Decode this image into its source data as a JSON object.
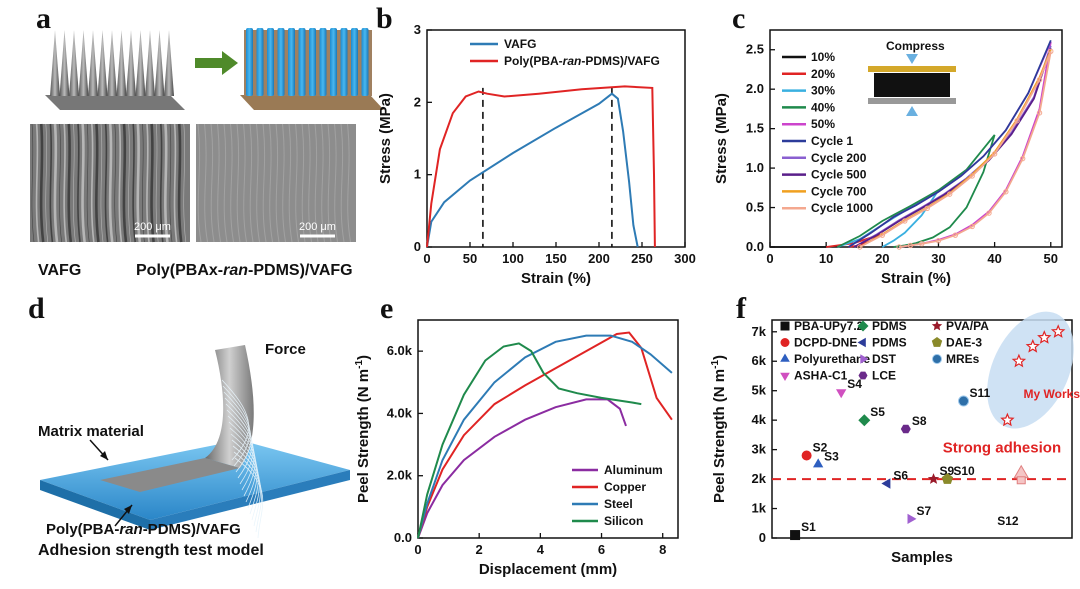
{
  "panels": {
    "a": {
      "label": "a",
      "caption_left": "VAFG",
      "caption_right": "Poly(PBAx-",
      "caption_right_italic": "ran",
      "caption_right_end": "-PDMS)/VAFG",
      "scale_bar_left": "200 μm",
      "scale_bar_right": "200 μm"
    },
    "b": {
      "label": "b"
    },
    "c": {
      "label": "c",
      "compress_label": "Compress"
    },
    "d": {
      "label": "d",
      "force_label": "Force",
      "matrix_label": "Matrix material",
      "composite_label": "Poly(PBA-",
      "composite_italic": "ran",
      "composite_end": "-PDMS)/VAFG",
      "model_caption": "Adhesion strength test model"
    },
    "e": {
      "label": "e"
    },
    "f": {
      "label": "f"
    }
  },
  "colors": {
    "red": "#e02424",
    "blue": "#2e7bb5",
    "green": "#1f8a4c",
    "purple": "#8b2ca1",
    "black": "#111111"
  },
  "chart_data": [
    {
      "id": "b",
      "type": "line",
      "xlabel": "Strain (%)",
      "ylabel": "Stress (MPa)",
      "xlim": [
        0,
        300
      ],
      "ylim": [
        0,
        3
      ],
      "xticks": [
        0,
        50,
        100,
        150,
        200,
        250,
        300
      ],
      "yticks": [
        0,
        1,
        2,
        3
      ],
      "series": [
        {
          "name": "VAFG",
          "color": "#2e7bb5",
          "x": [
            0,
            5,
            20,
            50,
            100,
            150,
            200,
            215,
            222,
            228,
            235,
            240,
            245
          ],
          "y": [
            0,
            0.35,
            0.62,
            0.92,
            1.3,
            1.65,
            1.98,
            2.12,
            2.05,
            1.6,
            0.9,
            0.3,
            0
          ]
        },
        {
          "name": "Poly(PBA-ran-PDMS)/VAFG",
          "name_prefix": "Poly(PBA-",
          "name_italic": "ran",
          "name_suffix": "-PDMS)/VAFG",
          "color": "#e02424",
          "x": [
            0,
            5,
            15,
            30,
            45,
            60,
            70,
            90,
            130,
            180,
            230,
            262,
            264,
            265
          ],
          "y": [
            0,
            0.6,
            1.35,
            1.85,
            2.08,
            2.15,
            2.12,
            2.08,
            2.12,
            2.18,
            2.22,
            2.2,
            1.0,
            0
          ]
        }
      ],
      "vlines": [
        65,
        215
      ],
      "legend": "top-left"
    },
    {
      "id": "c",
      "type": "line",
      "xlabel": "Strain (%)",
      "ylabel": "Stress (MPa)",
      "xlim": [
        0,
        52
      ],
      "ylim": [
        0,
        2.75
      ],
      "xticks": [
        0,
        10,
        20,
        30,
        40,
        50
      ],
      "yticks": [
        0,
        0.5,
        1.0,
        1.5,
        2.0,
        2.5
      ],
      "legend": "top-left",
      "series": [
        {
          "name": "10%",
          "color": "#111111",
          "x": [
            0,
            10
          ],
          "y": [
            0,
            0
          ]
        },
        {
          "name": "20%",
          "color": "#e02424",
          "x": [
            10,
            15,
            18,
            20,
            18,
            16,
            14
          ],
          "y": [
            0,
            0.05,
            0.12,
            0.18,
            0.08,
            0.02,
            0
          ]
        },
        {
          "name": "30%",
          "color": "#3ab0e0",
          "x": [
            12,
            16,
            20,
            25,
            30,
            27,
            24,
            22,
            20
          ],
          "y": [
            0,
            0.1,
            0.28,
            0.5,
            0.72,
            0.4,
            0.18,
            0.08,
            0
          ]
        },
        {
          "name": "40%",
          "color": "#1f8a4c",
          "x": [
            12,
            16,
            20,
            25,
            30,
            35,
            40,
            38,
            35,
            32,
            29,
            26,
            24,
            22
          ],
          "y": [
            0,
            0.14,
            0.33,
            0.52,
            0.72,
            0.98,
            1.42,
            0.95,
            0.5,
            0.25,
            0.12,
            0.05,
            0.02,
            0
          ]
        },
        {
          "name": "50%",
          "color": "#cc44cc",
          "x": [
            14,
            18,
            22,
            26,
            30,
            34,
            38,
            42,
            46,
            50,
            48,
            45,
            42,
            39,
            36,
            33,
            30,
            27,
            25,
            23
          ],
          "y": [
            0,
            0.18,
            0.38,
            0.53,
            0.7,
            0.9,
            1.15,
            1.48,
            1.95,
            2.6,
            1.75,
            1.15,
            0.72,
            0.45,
            0.28,
            0.16,
            0.09,
            0.04,
            0.02,
            0
          ]
        },
        {
          "name": "Cycle 1",
          "color": "#2c3c9a",
          "x": [
            14,
            18,
            22,
            26,
            30,
            34,
            38,
            42,
            46,
            50
          ],
          "y": [
            0,
            0.18,
            0.38,
            0.53,
            0.7,
            0.9,
            1.15,
            1.48,
            1.95,
            2.62
          ]
        },
        {
          "name": "Cycle 200",
          "color": "#8a5fd0",
          "x": [
            15,
            19,
            23,
            27,
            31,
            35,
            39,
            43,
            47,
            50
          ],
          "y": [
            0,
            0.16,
            0.34,
            0.5,
            0.67,
            0.87,
            1.12,
            1.45,
            1.9,
            2.55
          ]
        },
        {
          "name": "Cycle 500",
          "color": "#5a1f8a",
          "x": [
            15,
            19,
            23,
            27,
            31,
            35,
            39,
            43,
            47,
            50
          ],
          "y": [
            0,
            0.15,
            0.33,
            0.49,
            0.66,
            0.86,
            1.1,
            1.43,
            1.88,
            2.52
          ]
        },
        {
          "name": "Cycle 700",
          "color": "#f0a020",
          "x": [
            16,
            20,
            24,
            28,
            32,
            36,
            40,
            44,
            48,
            50
          ],
          "y": [
            0,
            0.16,
            0.34,
            0.5,
            0.68,
            0.92,
            1.2,
            1.62,
            2.15,
            2.5
          ]
        },
        {
          "name": "Cycle 1000",
          "color": "#f4a88f",
          "x": [
            16,
            20,
            24,
            28,
            32,
            36,
            40,
            44,
            48,
            50,
            48,
            45,
            42,
            39,
            36,
            33,
            30,
            27,
            25,
            23
          ],
          "y": [
            0,
            0.15,
            0.33,
            0.49,
            0.67,
            0.9,
            1.18,
            1.6,
            2.12,
            2.48,
            1.7,
            1.12,
            0.7,
            0.43,
            0.26,
            0.15,
            0.08,
            0.04,
            0.02,
            0
          ],
          "markers": true
        }
      ]
    },
    {
      "id": "e",
      "type": "line",
      "xlabel": "Displacement (mm)",
      "ylabel": "Peel Strength (N m",
      "ylabel_sup": "-1",
      "ylabel_end": ")",
      "xlim": [
        0,
        8.5
      ],
      "ylim": [
        0,
        7000
      ],
      "xticks": [
        0,
        2,
        4,
        6,
        8
      ],
      "yticks": [
        0,
        2000,
        4000,
        6000
      ],
      "ytick_labels": [
        "0.0",
        "2.0k",
        "4.0k",
        "6.0k"
      ],
      "legend": "bottom-right",
      "series": [
        {
          "name": "Aluminum",
          "color": "#8b2ca1",
          "x": [
            0,
            0.3,
            0.8,
            1.5,
            2.5,
            3.5,
            4.5,
            5.5,
            6.2,
            6.6,
            6.8
          ],
          "y": [
            0,
            800,
            1700,
            2500,
            3250,
            3800,
            4200,
            4450,
            4450,
            4150,
            3600
          ]
        },
        {
          "name": "Copper",
          "color": "#e02424",
          "x": [
            0,
            0.3,
            0.8,
            1.5,
            2.5,
            3.5,
            4.5,
            5.5,
            6.5,
            6.9,
            7.3,
            7.8,
            8.3
          ],
          "y": [
            0,
            1000,
            2200,
            3300,
            4300,
            4900,
            5450,
            6000,
            6550,
            6600,
            6100,
            4500,
            3800
          ]
        },
        {
          "name": "Steel",
          "color": "#2e7bb5",
          "x": [
            0,
            0.3,
            0.8,
            1.5,
            2.5,
            3.5,
            4.5,
            5.5,
            6.3,
            7.0,
            7.6,
            8.3
          ],
          "y": [
            0,
            1100,
            2500,
            3800,
            5000,
            5800,
            6300,
            6500,
            6500,
            6300,
            5900,
            5300
          ]
        },
        {
          "name": "Silicon",
          "color": "#1f8a4c",
          "x": [
            0,
            0.3,
            0.8,
            1.5,
            2.2,
            2.8,
            3.3,
            3.7,
            4.1,
            4.6,
            5.2,
            6.0,
            7.0,
            7.3
          ],
          "y": [
            0,
            1400,
            3000,
            4600,
            5700,
            6150,
            6250,
            6000,
            5300,
            4800,
            4650,
            4500,
            4350,
            4300
          ]
        }
      ]
    },
    {
      "id": "f",
      "type": "scatter",
      "xlabel": "Samples",
      "ylabel": "Peel Strength (N m",
      "ylabel_sup": "-1",
      "ylabel_end": ")",
      "xlim": [
        0,
        13
      ],
      "ylim": [
        0,
        7400
      ],
      "yticks": [
        0,
        1000,
        2000,
        3000,
        4000,
        5000,
        6000,
        7000
      ],
      "ytick_labels": [
        "0",
        "1k",
        "2k",
        "3k",
        "4k",
        "5k",
        "6k",
        "7k"
      ],
      "hline": 2000,
      "legend": "top",
      "annotation_strong": "Strong adhesion",
      "annotation_mine": "My Works",
      "legend_entries": [
        {
          "name": "PBA-UPy7.2",
          "marker": "square",
          "color": "#111111"
        },
        {
          "name": "PDMS",
          "marker": "diamond",
          "color": "#1f8a4c"
        },
        {
          "name": "PVA/PA",
          "marker": "star",
          "color": "#9a1a2a"
        },
        {
          "name": "DCPD-DNE",
          "marker": "circle",
          "color": "#e02424"
        },
        {
          "name": "PDMS",
          "marker": "tri-left",
          "color": "#2c3c9a"
        },
        {
          "name": "DAE-3",
          "marker": "pentagon",
          "color": "#8a8a2a"
        },
        {
          "name": "Polyurethane",
          "marker": "tri-up",
          "color": "#2e5fc0"
        },
        {
          "name": "DST",
          "marker": "tri-right",
          "color": "#a060d0"
        },
        {
          "name": "MREs",
          "marker": "sphere",
          "color": "#2e6fa8"
        },
        {
          "name": "ASHA-C1",
          "marker": "tri-down",
          "color": "#d050c0"
        },
        {
          "name": "LCE",
          "marker": "hexagon",
          "color": "#6a2a8a"
        }
      ],
      "points": [
        {
          "label": "S1",
          "x": 1.0,
          "y": 100,
          "marker": "square",
          "color": "#111111"
        },
        {
          "label": "S2",
          "x": 1.5,
          "y": 2800,
          "marker": "circle",
          "color": "#e02424"
        },
        {
          "label": "S3",
          "x": 2.0,
          "y": 2500,
          "marker": "tri-up",
          "color": "#2e5fc0"
        },
        {
          "label": "S4",
          "x": 3.0,
          "y": 4950,
          "marker": "tri-down",
          "color": "#d050c0"
        },
        {
          "label": "S5",
          "x": 4.0,
          "y": 4000,
          "marker": "diamond",
          "color": "#1f8a4c"
        },
        {
          "label": "S6",
          "x": 5.0,
          "y": 1850,
          "marker": "tri-left",
          "color": "#2c3c9a"
        },
        {
          "label": "S7",
          "x": 6.0,
          "y": 650,
          "marker": "tri-right",
          "color": "#a060d0"
        },
        {
          "label": "S8",
          "x": 5.8,
          "y": 3700,
          "marker": "hexagon",
          "color": "#6a2a8a"
        },
        {
          "label": "S9",
          "x": 7.0,
          "y": 2000,
          "marker": "star",
          "color": "#9a1a2a"
        },
        {
          "label": "S10",
          "x": 7.6,
          "y": 2000,
          "marker": "pentagon",
          "color": "#8a8a2a"
        },
        {
          "label": "S11",
          "x": 8.3,
          "y": 4650,
          "marker": "sphere",
          "color": "#2e6fa8"
        },
        {
          "label": "S12",
          "x": 9.5,
          "y": 300,
          "marker": "none",
          "color": "#111111"
        },
        {
          "label": "",
          "x": 10.2,
          "y": 4000,
          "marker": "open-star",
          "color": "#e02424"
        },
        {
          "label": "",
          "x": 10.7,
          "y": 6000,
          "marker": "open-star",
          "color": "#e02424"
        },
        {
          "label": "",
          "x": 11.3,
          "y": 6500,
          "marker": "open-star",
          "color": "#e02424"
        },
        {
          "label": "",
          "x": 11.8,
          "y": 6800,
          "marker": "open-star",
          "color": "#e02424"
        },
        {
          "label": "",
          "x": 12.4,
          "y": 7000,
          "marker": "open-star",
          "color": "#e02424"
        }
      ]
    }
  ]
}
